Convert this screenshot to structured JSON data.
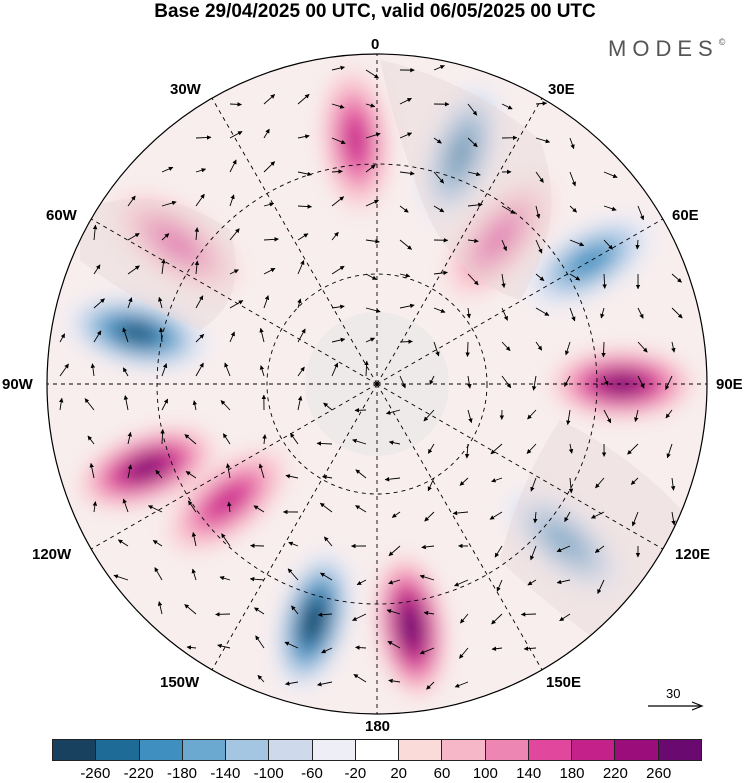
{
  "title": "Base 29/04/2025 00 UTC, valid 06/05/2025 00 UTC",
  "brand": "MODES",
  "brand_mark": "©",
  "longitude_labels": {
    "top": "0",
    "top_left": "30W",
    "top_right": "30E",
    "left_upper": "60W",
    "right_upper": "60E",
    "left": "90W",
    "right": "90E",
    "left_lower": "120W",
    "right_lower": "120E",
    "bottom_left": "150W",
    "bottom_right": "150E",
    "bottom": "180"
  },
  "vector_scale": {
    "value": "30"
  },
  "colorbar": {
    "colors": [
      "#17415e",
      "#1f6b98",
      "#3f8fc0",
      "#6ba9d0",
      "#a4c6e2",
      "#cfd9ec",
      "#eeeef7",
      "#ffffff",
      "#fbdada",
      "#f6b7c9",
      "#ee86b4",
      "#e0479d",
      "#c5218a",
      "#9a0d7b",
      "#6a0a71"
    ],
    "tick_labels": [
      "-260",
      "-220",
      "-180",
      "-140",
      "-100",
      "-60",
      "-20",
      "20",
      "60",
      "100",
      "140",
      "180",
      "220",
      "260"
    ]
  },
  "map": {
    "projection": "north polar stereographic",
    "field": "geopotential anomaly (shaded) with wind vectors",
    "anomaly_centers": [
      {
        "sign": "positive",
        "strength": 3,
        "lon": -55,
        "lat_index": 2
      },
      {
        "sign": "positive",
        "strength": 4,
        "lon": -5,
        "lat_index": 2
      },
      {
        "sign": "negative",
        "strength": 5,
        "lon": 20,
        "lat_index": 2
      },
      {
        "sign": "positive",
        "strength": 3,
        "lon": 40,
        "lat_index": 1
      },
      {
        "sign": "negative",
        "strength": 4,
        "lon": 60,
        "lat_index": 2
      },
      {
        "sign": "positive",
        "strength": 6,
        "lon": 90,
        "lat_index": 2
      },
      {
        "sign": "negative",
        "strength": 4,
        "lon": 130,
        "lat_index": 2
      },
      {
        "sign": "positive",
        "strength": 7,
        "lon": 172,
        "lat_index": 2
      },
      {
        "sign": "negative",
        "strength": 7,
        "lon": -165,
        "lat_index": 2
      },
      {
        "sign": "positive",
        "strength": 4,
        "lon": -128,
        "lat_index": 1
      },
      {
        "sign": "positive",
        "strength": 6,
        "lon": -110,
        "lat_index": 2
      },
      {
        "sign": "negative",
        "strength": 6,
        "lon": -78,
        "lat_index": 2
      }
    ]
  }
}
